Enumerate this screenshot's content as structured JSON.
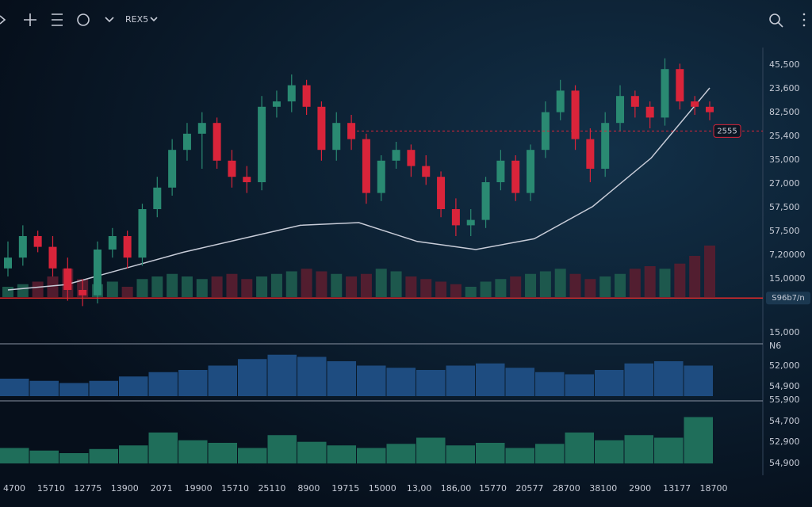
{
  "toolbar": {
    "symbol": "REX5"
  },
  "price_axis_labels": [
    "45,500",
    "23,600",
    "82,500",
    "25,400",
    "35,000",
    "27,000",
    "57,500",
    "57,500",
    "7,20000",
    "15,0000"
  ],
  "lower_axis_labels": [
    "15,000",
    "N6",
    "52,000",
    "54,900",
    "55,900",
    "54,700",
    "52,900",
    "54,900"
  ],
  "time_labels": [
    "4700",
    "15710",
    "12775",
    "13900",
    "2071",
    "19900",
    "15710",
    "25110",
    "8900",
    "19715",
    "15000",
    "13,00",
    "186,00",
    "15770",
    "20577",
    "28700",
    "38100",
    "2900",
    "13177",
    "18700"
  ],
  "chart_data": {
    "type": "candlestick",
    "ylim": [
      0,
      100
    ],
    "up_color": "#2a8a72",
    "down_color": "#d9243a",
    "open": [
      18,
      22,
      30,
      26,
      18,
      10,
      8,
      25,
      30,
      22,
      40,
      48,
      62,
      68,
      72,
      58,
      52,
      50,
      78,
      80,
      86,
      78,
      62,
      72,
      66,
      46,
      58,
      62,
      56,
      52,
      40,
      34,
      36,
      50,
      58,
      46,
      62,
      76,
      84,
      66,
      55,
      72,
      82,
      78,
      74,
      92,
      80,
      78
    ],
    "high": [
      28,
      34,
      32,
      30,
      22,
      14,
      28,
      33,
      32,
      42,
      52,
      66,
      72,
      76,
      74,
      62,
      56,
      82,
      84,
      90,
      88,
      80,
      76,
      75,
      68,
      60,
      65,
      64,
      60,
      54,
      44,
      40,
      52,
      62,
      60,
      64,
      80,
      88,
      86,
      70,
      76,
      86,
      84,
      80,
      96,
      94,
      82,
      80
    ],
    "low": [
      15,
      19,
      24,
      15,
      6,
      4,
      5,
      22,
      18,
      19,
      37,
      45,
      58,
      55,
      55,
      48,
      46,
      47,
      74,
      76,
      75,
      58,
      58,
      62,
      42,
      43,
      55,
      52,
      49,
      37,
      30,
      30,
      33,
      47,
      43,
      43,
      59,
      73,
      62,
      50,
      52,
      69,
      74,
      70,
      71,
      77,
      75,
      73
    ],
    "close": [
      22,
      30,
      26,
      18,
      10,
      8,
      25,
      30,
      22,
      40,
      48,
      62,
      68,
      72,
      58,
      52,
      50,
      78,
      80,
      86,
      78,
      62,
      72,
      66,
      46,
      58,
      62,
      56,
      52,
      40,
      34,
      36,
      50,
      58,
      46,
      62,
      76,
      84,
      66,
      55,
      72,
      82,
      78,
      74,
      92,
      80,
      78,
      76
    ],
    "ma": [
      10,
      12,
      18,
      24,
      29,
      34,
      35,
      28,
      25,
      29,
      41,
      59,
      85
    ],
    "ma_color": "#c8ccd8",
    "levels": [
      {
        "value": 69,
        "label": "2555",
        "color": "#d9243a"
      },
      {
        "value": 7,
        "label": "S96b7/n",
        "color": "#e02a2a"
      }
    ],
    "volume": {
      "ylim": [
        0,
        100
      ],
      "values": [
        20,
        25,
        30,
        40,
        55,
        35,
        25,
        30,
        20,
        35,
        40,
        45,
        40,
        35,
        40,
        45,
        35,
        40,
        45,
        50,
        55,
        50,
        45,
        40,
        45,
        55,
        50,
        40,
        35,
        30,
        25,
        20,
        30,
        35,
        40,
        45,
        50,
        55,
        45,
        35,
        40,
        45,
        55,
        60,
        55,
        65,
        80,
        100
      ]
    },
    "osc1": {
      "ylim": [
        0,
        100
      ],
      "color": "#1e4c80",
      "values": [
        40,
        35,
        30,
        35,
        45,
        55,
        60,
        70,
        85,
        95,
        90,
        80,
        70,
        65,
        60,
        70,
        75,
        65,
        55,
        50,
        60,
        75,
        80,
        70
      ]
    },
    "osc2": {
      "ylim": [
        0,
        100
      ],
      "color": "#1f6e5a",
      "values": [
        30,
        25,
        20,
        28,
        35,
        60,
        45,
        40,
        30,
        55,
        42,
        35,
        30,
        38,
        50,
        35,
        40,
        30,
        38,
        60,
        45,
        55,
        50,
        90
      ]
    }
  }
}
